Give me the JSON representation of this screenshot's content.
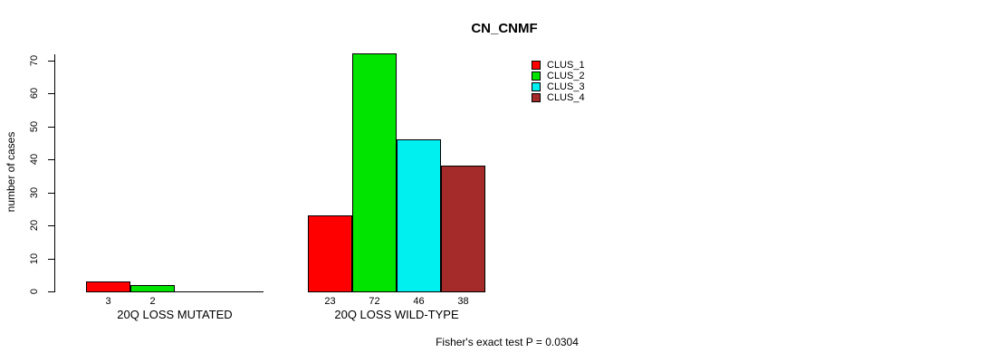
{
  "chart_data": {
    "type": "bar",
    "title": "CN_CNMF",
    "ylabel": "number of cases",
    "xlabel": "",
    "ylim": [
      0,
      72
    ],
    "yticks": [
      0,
      10,
      20,
      30,
      40,
      50,
      60,
      70
    ],
    "grid": false,
    "legend_position": "top-right",
    "categories": [
      "20Q LOSS MUTATED",
      "20Q LOSS WILD-TYPE"
    ],
    "series": [
      {
        "name": "CLUS_1",
        "color": "#ff0000",
        "values": [
          3,
          23
        ]
      },
      {
        "name": "CLUS_2",
        "color": "#00e400",
        "values": [
          2,
          72
        ]
      },
      {
        "name": "CLUS_3",
        "color": "#00f0f0",
        "values": [
          0,
          46
        ]
      },
      {
        "name": "CLUS_4",
        "color": "#a52a2a",
        "values": [
          0,
          38
        ]
      }
    ],
    "bar_value_labels": {
      "20Q LOSS MUTATED": [
        3,
        2
      ],
      "20Q LOSS WILD-TYPE": [
        23,
        72,
        46,
        38
      ]
    },
    "annotation": "Fisher's exact test P = 0.0304"
  }
}
